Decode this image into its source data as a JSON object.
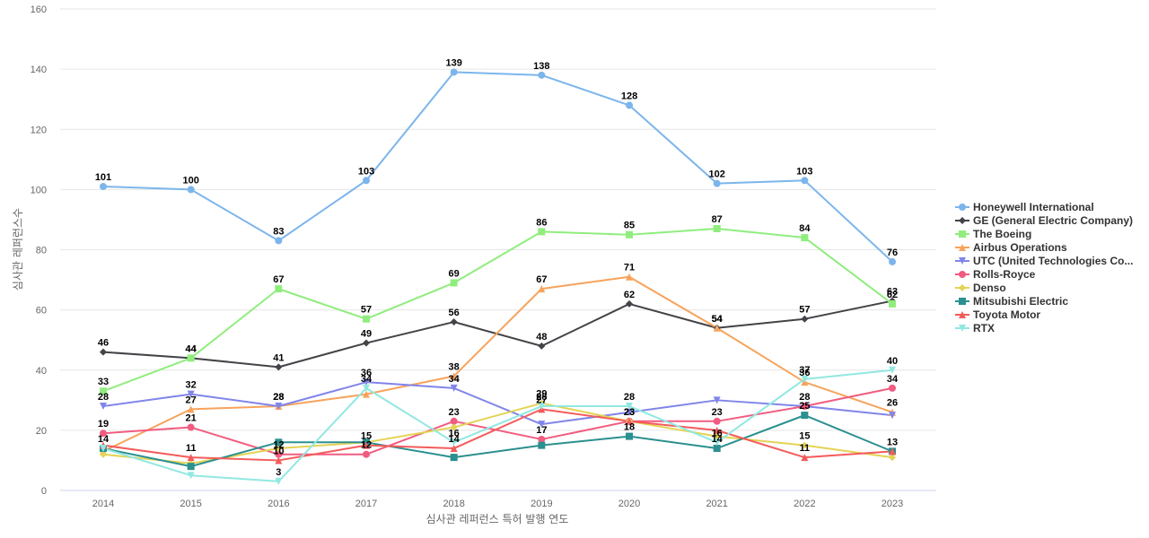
{
  "chart_data": {
    "type": "line",
    "xlabel": "심사관 레퍼런스 특허 발행 연도",
    "ylabel": "심사관 레퍼런스수",
    "ylim": [
      0,
      160
    ],
    "yticks": [
      0,
      20,
      40,
      60,
      80,
      100,
      120,
      140,
      160
    ],
    "grid": true,
    "legend_position": "right",
    "x": [
      "2014",
      "2015",
      "2016",
      "2017",
      "2018",
      "2019",
      "2020",
      "2021",
      "2022",
      "2023"
    ],
    "series": [
      {
        "name": "Honeywell International",
        "color": "#7cb5ec",
        "marker": "circle",
        "values": [
          101,
          100,
          83,
          103,
          139,
          138,
          128,
          102,
          103,
          76
        ]
      },
      {
        "name": "GE (General Electric Company)",
        "color": "#434348",
        "marker": "diamond",
        "values": [
          46,
          44,
          41,
          49,
          56,
          48,
          62,
          54,
          57,
          63
        ]
      },
      {
        "name": "The Boeing",
        "color": "#90ed7d",
        "marker": "square",
        "values": [
          33,
          44,
          67,
          57,
          69,
          86,
          85,
          87,
          84,
          62
        ]
      },
      {
        "name": "Airbus Operations",
        "color": "#f7a35c",
        "marker": "triangle",
        "values": [
          13,
          27,
          28,
          32,
          38,
          67,
          71,
          54,
          36,
          26
        ]
      },
      {
        "name": "UTC (United Technologies Co...",
        "color": "#8085e9",
        "marker": "triangle-down",
        "values": [
          28,
          32,
          28,
          36,
          34,
          22,
          26,
          30,
          28,
          25
        ]
      },
      {
        "name": "Rolls-Royce",
        "color": "#f15c80",
        "marker": "circle",
        "values": [
          19,
          21,
          12,
          12,
          23,
          17,
          23,
          23,
          28,
          34
        ]
      },
      {
        "name": "Denso",
        "color": "#e4d354",
        "marker": "diamond",
        "values": [
          12,
          9,
          14,
          16,
          21,
          29,
          23,
          18,
          15,
          11
        ]
      },
      {
        "name": "Mitsubishi Electric",
        "color": "#2b908f",
        "marker": "square",
        "values": [
          14,
          8,
          16,
          16,
          11,
          15,
          18,
          14,
          25,
          13
        ]
      },
      {
        "name": "Toyota Motor",
        "color": "#f45b5b",
        "marker": "triangle",
        "values": [
          15,
          11,
          10,
          15,
          14,
          27,
          23,
          20,
          11,
          13
        ]
      },
      {
        "name": "RTX",
        "color": "#91e8e1",
        "marker": "triangle-down",
        "values": [
          14,
          5,
          3,
          34,
          16,
          28,
          28,
          16,
          37,
          40
        ]
      }
    ],
    "data_labels": [
      {
        "series": 0,
        "points": [
          0,
          1,
          2,
          3,
          4,
          5,
          6,
          7,
          8,
          9
        ]
      },
      {
        "series": 1,
        "points": [
          0,
          1,
          2,
          3,
          4,
          5,
          6,
          7,
          8,
          9
        ]
      },
      {
        "series": 2,
        "points": [
          0,
          1,
          2,
          3,
          4,
          5,
          6,
          7,
          8,
          9
        ]
      },
      {
        "series": 3,
        "points": [
          1,
          2,
          4,
          5,
          6,
          7,
          8,
          9
        ]
      },
      {
        "series": 4,
        "points": [
          0,
          1,
          2,
          3,
          4
        ]
      },
      {
        "series": 5,
        "points": [
          0,
          1,
          2,
          3,
          4,
          5,
          6,
          7,
          8,
          9
        ]
      },
      {
        "series": 6,
        "points": [
          5,
          8
        ]
      },
      {
        "series": 7,
        "points": [
          0,
          6,
          7,
          8,
          9
        ]
      },
      {
        "series": 8,
        "points": [
          1,
          2,
          3,
          4,
          5,
          6,
          8
        ]
      },
      {
        "series": 9,
        "points": [
          2,
          3,
          4,
          5,
          6,
          7,
          8,
          9
        ]
      }
    ]
  }
}
